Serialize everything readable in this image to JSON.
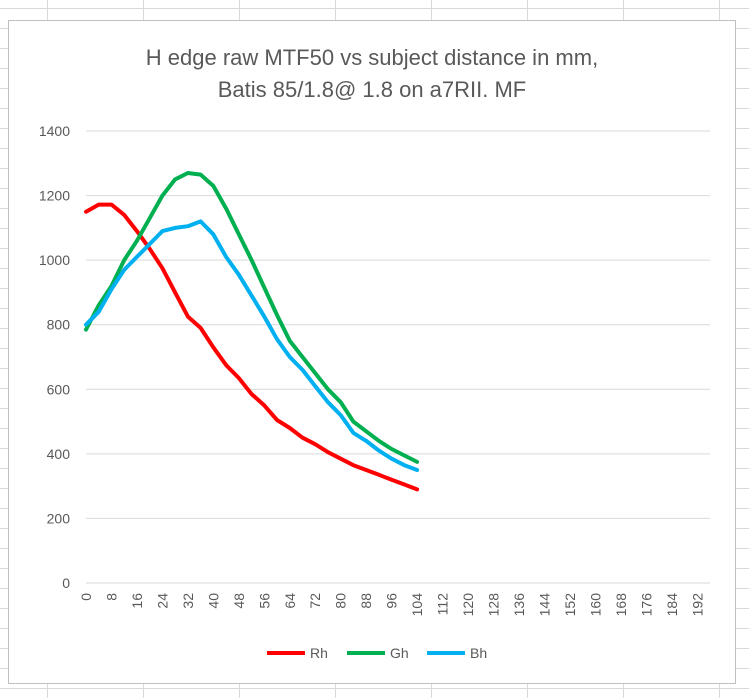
{
  "chart_data": {
    "type": "line",
    "title_lines": [
      "H edge raw MTF50 vs subject distance in mm,",
      "Batis 85/1.8@ 1.8 on a7RII. MF"
    ],
    "xlabel": "",
    "ylabel": "",
    "x_ticks": [
      0,
      8,
      16,
      24,
      32,
      40,
      48,
      56,
      64,
      72,
      80,
      88,
      96,
      104,
      112,
      120,
      128,
      136,
      144,
      152,
      160,
      168,
      176,
      184,
      192
    ],
    "xlim": [
      0,
      196
    ],
    "ylim": [
      0,
      1400
    ],
    "y_ticks": [
      0,
      200,
      400,
      600,
      800,
      1000,
      1200,
      1400
    ],
    "grid": true,
    "legend_position": "bottom",
    "x": [
      0,
      4,
      8,
      12,
      16,
      20,
      24,
      28,
      32,
      36,
      40,
      44,
      48,
      52,
      56,
      60,
      64,
      68,
      72,
      76,
      80,
      84,
      88,
      92,
      96,
      100,
      104
    ],
    "series": [
      {
        "name": "Rh",
        "color": "#ff0000",
        "values": [
          1150,
          1172,
          1172,
          1140,
          1090,
          1035,
          975,
          900,
          825,
          790,
          730,
          675,
          635,
          585,
          550,
          505,
          480,
          450,
          430,
          405,
          385,
          365,
          350,
          335,
          320,
          305,
          290
        ]
      },
      {
        "name": "Gh",
        "color": "#00b050",
        "values": [
          785,
          860,
          920,
          1000,
          1060,
          1130,
          1200,
          1250,
          1270,
          1265,
          1230,
          1160,
          1080,
          1000,
          915,
          830,
          750,
          700,
          650,
          600,
          560,
          500,
          470,
          440,
          415,
          395,
          375
        ]
      },
      {
        "name": "Bh",
        "color": "#00b0f0",
        "values": [
          800,
          840,
          910,
          970,
          1010,
          1050,
          1090,
          1100,
          1105,
          1120,
          1080,
          1010,
          955,
          890,
          825,
          755,
          700,
          660,
          610,
          560,
          520,
          465,
          440,
          410,
          385,
          365,
          350
        ]
      }
    ]
  }
}
